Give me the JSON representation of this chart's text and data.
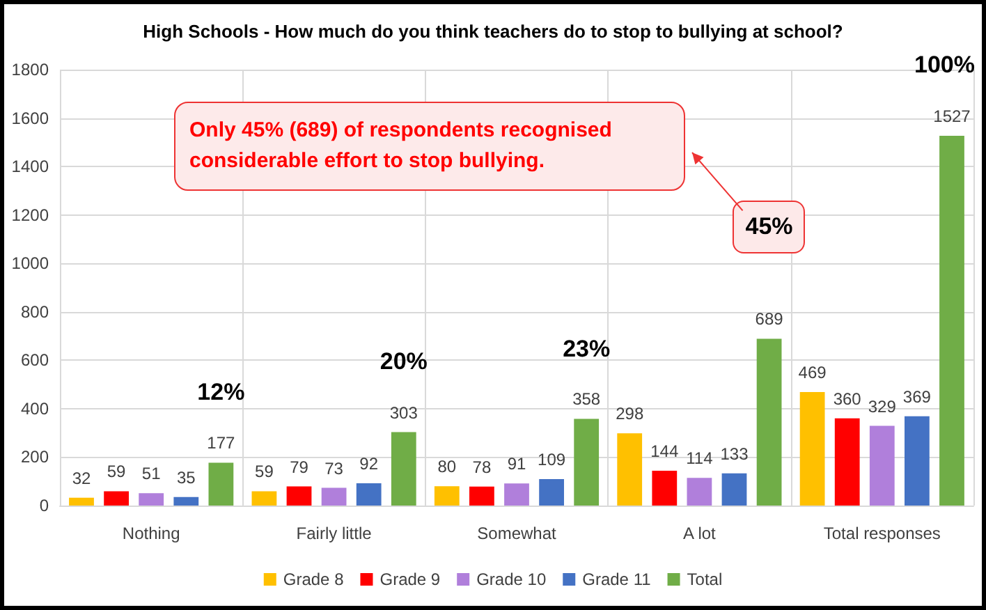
{
  "chart_data": {
    "type": "bar",
    "title": "High Schools - How much do you think teachers do to stop to bullying at school?",
    "categories": [
      "Nothing",
      "Fairly little",
      "Somewhat",
      "A lot",
      "Total responses"
    ],
    "series": [
      {
        "name": "Grade 8",
        "color": "#ffc000",
        "values": [
          32,
          59,
          80,
          298,
          469
        ]
      },
      {
        "name": "Grade 9",
        "color": "#ff0000",
        "values": [
          59,
          79,
          78,
          144,
          360
        ]
      },
      {
        "name": "Grade 10",
        "color": "#b07fdb",
        "values": [
          51,
          73,
          91,
          114,
          329
        ]
      },
      {
        "name": "Grade 11",
        "color": "#4472c4",
        "values": [
          35,
          92,
          109,
          133,
          369
        ]
      },
      {
        "name": "Total",
        "color": "#70ad47",
        "values": [
          177,
          303,
          358,
          689,
          1527
        ]
      }
    ],
    "ylim": [
      0,
      1800
    ],
    "yticks": [
      0,
      200,
      400,
      600,
      800,
      1000,
      1200,
      1400,
      1600,
      1800
    ],
    "grid": true,
    "legend": "bottom",
    "data_labels": true,
    "annotations": [
      "12%",
      "20%",
      "23%",
      "45%",
      "100%",
      "Only 45% (689) of respondents  recognised considerable effort to stop bullying."
    ]
  }
}
